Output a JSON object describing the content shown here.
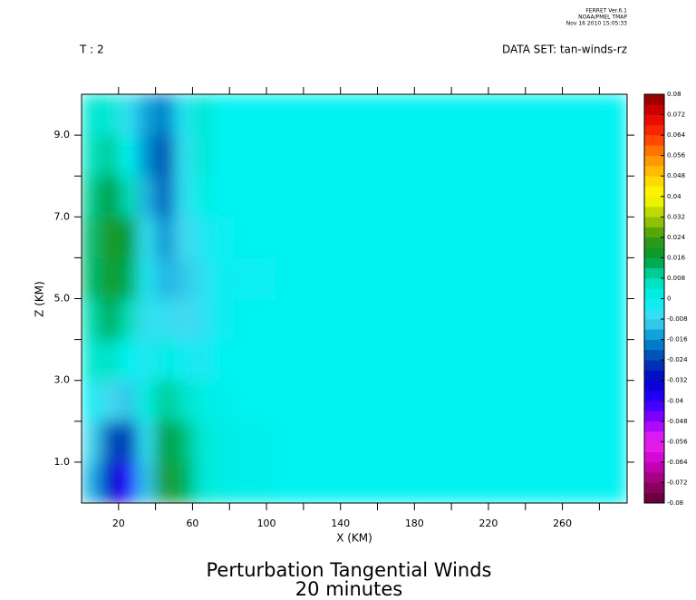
{
  "chart_data": {
    "type": "contour",
    "stamp": [
      "FERRET Ver.6.1",
      "NOAA/PMEL TMAP",
      "Nov 16 2010 15:05:33"
    ],
    "header_left": "T : 2",
    "header_right": "DATA SET: tan-winds-rz",
    "title": "Perturbation Tangential Winds",
    "subtitle": "20 minutes",
    "x_label": "X (KM)",
    "y_label": "Z (KM)",
    "xlim": [
      0,
      295
    ],
    "ylim": [
      0,
      10
    ],
    "xticks": [
      20,
      60,
      100,
      140,
      180,
      220,
      260
    ],
    "xminor": [
      40,
      80,
      120,
      160,
      200,
      240,
      280
    ],
    "yticks": [
      {
        "value": 1,
        "label": "1.0"
      },
      {
        "value": 3,
        "label": "3.0"
      },
      {
        "value": 5,
        "label": "5.0"
      },
      {
        "value": 7,
        "label": "7.0"
      },
      {
        "value": 9,
        "label": "9.0"
      }
    ],
    "yminor": [
      2,
      4,
      6,
      8
    ],
    "x": [
      5,
      15,
      25,
      35,
      45,
      55,
      65,
      75,
      90,
      120,
      160,
      200,
      240,
      280
    ],
    "y": [
      0.5,
      1.5,
      2.5,
      3.5,
      4.5,
      5.5,
      6.5,
      7.5,
      8.5,
      9.5
    ],
    "values": [
      [
        -0.012,
        -0.03,
        -0.04,
        -0.01,
        0.02,
        0.014,
        0.004,
        0.002,
        0.001,
        0,
        0,
        0,
        0,
        0
      ],
      [
        -0.008,
        -0.022,
        -0.026,
        -0.006,
        0.016,
        0.012,
        0.004,
        0.002,
        0.001,
        0,
        0,
        0,
        0,
        0
      ],
      [
        -0.002,
        -0.008,
        -0.01,
        0.002,
        0.01,
        0.006,
        0.002,
        0.001,
        0,
        0,
        0,
        0,
        0,
        0
      ],
      [
        0.004,
        0.006,
        0,
        -0.004,
        0.002,
        -0.002,
        -0.004,
        0,
        0,
        0,
        0,
        0,
        0,
        0
      ],
      [
        0.008,
        0.014,
        0.008,
        -0.006,
        -0.006,
        -0.008,
        -0.006,
        -0.002,
        0,
        0,
        0,
        0,
        0,
        0
      ],
      [
        0.012,
        0.018,
        0.014,
        -0.004,
        -0.012,
        -0.01,
        -0.006,
        -0.002,
        -0.001,
        0,
        0,
        0,
        0,
        0
      ],
      [
        0.012,
        0.02,
        0.016,
        -0.006,
        -0.016,
        -0.008,
        -0.004,
        -0.001,
        0,
        0,
        0,
        0,
        0,
        0
      ],
      [
        0.01,
        0.016,
        0.008,
        -0.012,
        -0.022,
        -0.006,
        0.002,
        0,
        0,
        0,
        0,
        0,
        0,
        0
      ],
      [
        0.006,
        0.01,
        0,
        -0.016,
        -0.024,
        -0.006,
        0.004,
        0,
        0,
        0,
        0,
        0,
        0,
        0
      ],
      [
        0.004,
        0.004,
        -0.006,
        -0.014,
        -0.018,
        -0.004,
        0.004,
        0,
        0,
        0,
        0,
        0,
        0,
        0
      ]
    ],
    "colorbar": {
      "ticks": [
        -0.08,
        -0.072,
        -0.064,
        -0.056,
        -0.048,
        -0.04,
        -0.032,
        -0.024,
        -0.016,
        -0.008,
        0,
        0.008,
        0.016,
        0.024,
        0.032,
        0.04,
        0.048,
        0.056,
        0.064,
        0.072,
        0.08
      ],
      "colors": [
        "#5c0033",
        "#99006b",
        "#cc00cc",
        "#ee22ee",
        "#9900ff",
        "#2a00ff",
        "#0000cc",
        "#0040b0",
        "#0090d0",
        "#44d8f0",
        "#00f2f2",
        "#00dcb4",
        "#009a30",
        "#3a9a10",
        "#aacc00",
        "#ffff00",
        "#ffcc00",
        "#ff8800",
        "#ff3300",
        "#e00000",
        "#880000"
      ]
    }
  }
}
